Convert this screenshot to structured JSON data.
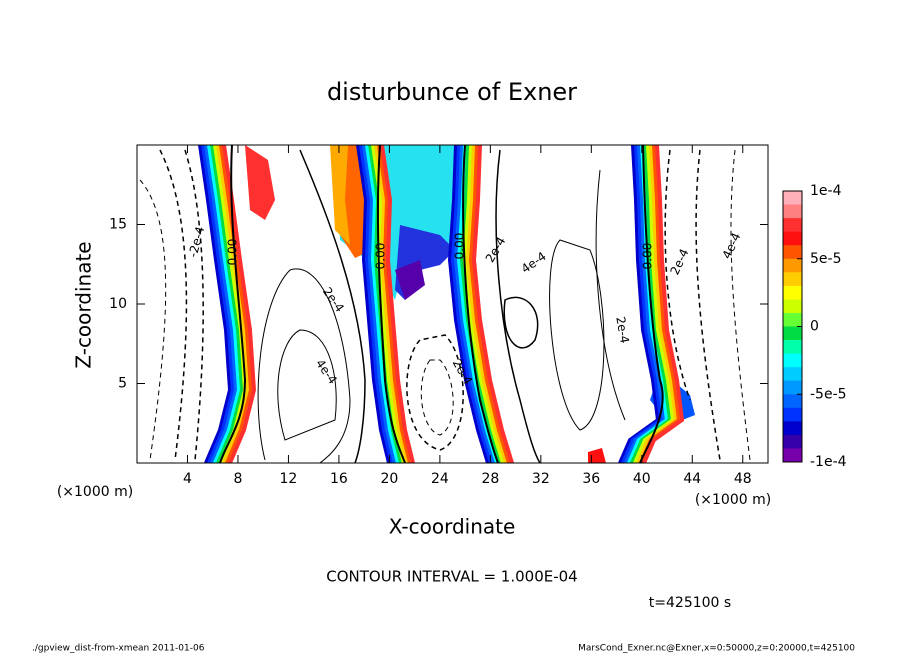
{
  "chart_data": {
    "type": "contour",
    "title": "disturbunce of Exner",
    "xlabel": "X-coordinate",
    "ylabel": "Z-coordinate",
    "xunit": "(×1000 m)",
    "yunit": "(×1000 m)",
    "xlim": [
      0,
      50
    ],
    "xticks": [
      4,
      8,
      12,
      16,
      20,
      24,
      28,
      32,
      36,
      40,
      44,
      48
    ],
    "ylim": [
      0,
      20
    ],
    "yticks": [
      5,
      10,
      15
    ],
    "clim": [
      -0.0001,
      0.0001
    ],
    "cticks": [
      {
        "value": 0.0001,
        "label": "1e-4"
      },
      {
        "value": 5e-05,
        "label": "5e-5"
      },
      0,
      {
        "value": -5e-05,
        "label": "-5e-5"
      },
      {
        "value": -0.0001,
        "label": "-1e-4"
      }
    ],
    "colors": [
      "#ffb0b8",
      "#ff8080",
      "#ff3030",
      "#ff1010",
      "#ff5500",
      "#ff9900",
      "#ffcc00",
      "#ffff00",
      "#ccff00",
      "#66ff33",
      "#00dd44",
      "#00ffaa",
      "#00ffff",
      "#00ccff",
      "#0099ff",
      "#0066ff",
      "#0033ff",
      "#0000cc",
      "#3300aa",
      "#7700aa"
    ],
    "contour_labels": [
      "-2e-4",
      "0.00",
      "2e-4",
      "4e-4",
      "0.00",
      "2e-4",
      "0.00",
      "2e-4",
      "4e-4",
      "2e-4",
      "0.00",
      "2e-4",
      "4e-4"
    ],
    "contour_interval": "CONTOUR INTERVAL = 1.000E-04",
    "time": "t=425100 s",
    "footer_left": "./gpview_dist-from-xmean  2011-01-06",
    "footer_right": "MarsCond_Exner.nc@Exner,x=0:50000,z=0:20000,t=425100"
  }
}
